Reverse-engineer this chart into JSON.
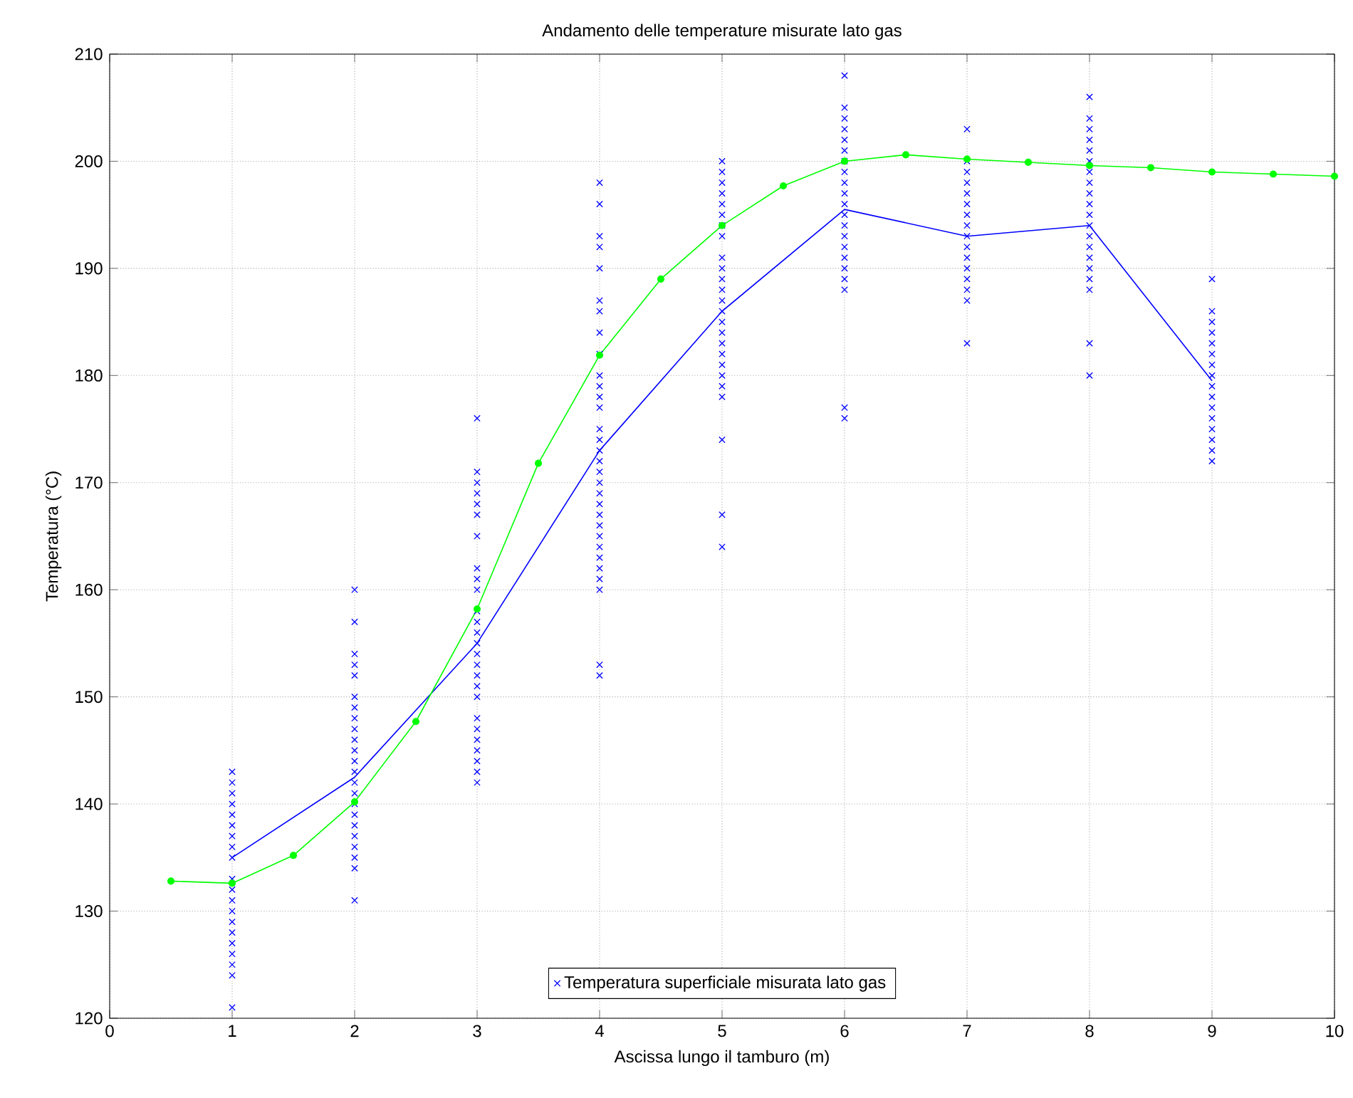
{
  "chart_data": {
    "type": "scatter",
    "title": "Andamento delle temperature misurate lato gas",
    "xlabel": "Ascissa lungo il tamburo (m)",
    "ylabel": "Temperatura (°C)",
    "xlim": [
      0,
      10
    ],
    "ylim": [
      120,
      210
    ],
    "xticks": [
      0,
      1,
      2,
      3,
      4,
      5,
      6,
      7,
      8,
      9,
      10
    ],
    "yticks": [
      120,
      130,
      140,
      150,
      160,
      170,
      180,
      190,
      200,
      210
    ],
    "grid": true,
    "legend": "bottom",
    "series": [
      {
        "name": "Temperatura superficiale misurata lato gas",
        "marker": "cross",
        "color": "#0000ff",
        "x": [
          1,
          1,
          1,
          1,
          1,
          1,
          1,
          1,
          1,
          1,
          1,
          1,
          1,
          1,
          1,
          1,
          1,
          1,
          1,
          1,
          2,
          2,
          2,
          2,
          2,
          2,
          2,
          2,
          2,
          2,
          2,
          2,
          2,
          2,
          2,
          2,
          2,
          2,
          2,
          2,
          2,
          2,
          2,
          3,
          3,
          3,
          3,
          3,
          3,
          3,
          3,
          3,
          3,
          3,
          3,
          3,
          3,
          3,
          3,
          3,
          3,
          3,
          3,
          3,
          3,
          3,
          3,
          3,
          3,
          4,
          4,
          4,
          4,
          4,
          4,
          4,
          4,
          4,
          4,
          4,
          4,
          4,
          4,
          4,
          4,
          4,
          4,
          4,
          4,
          4,
          4,
          4,
          4,
          4,
          4,
          4,
          4,
          4,
          4,
          4,
          5,
          5,
          5,
          5,
          5,
          5,
          5,
          5,
          5,
          5,
          5,
          5,
          5,
          5,
          5,
          5,
          5,
          5,
          5,
          5,
          5,
          5,
          5,
          5,
          5,
          6,
          6,
          6,
          6,
          6,
          6,
          6,
          6,
          6,
          6,
          6,
          6,
          6,
          6,
          6,
          6,
          6,
          6,
          6,
          6,
          6,
          7,
          7,
          7,
          7,
          7,
          7,
          7,
          7,
          7,
          7,
          7,
          7,
          7,
          7,
          7,
          7,
          8,
          8,
          8,
          8,
          8,
          8,
          8,
          8,
          8,
          8,
          8,
          8,
          8,
          8,
          8,
          8,
          8,
          8,
          8,
          8,
          9,
          9,
          9,
          9,
          9,
          9,
          9,
          9,
          9,
          9,
          9,
          9,
          9,
          9,
          9,
          9
        ],
        "values": [
          143,
          142,
          141,
          140,
          139,
          138,
          137,
          136,
          135,
          133,
          132,
          131,
          130,
          129,
          128,
          127,
          126,
          125,
          124,
          121,
          160,
          157,
          154,
          153,
          152,
          150,
          149,
          148,
          147,
          146,
          145,
          144,
          143,
          142,
          141,
          140,
          139,
          138,
          137,
          136,
          135,
          134,
          131,
          176,
          171,
          170,
          169,
          168,
          167,
          165,
          162,
          161,
          160,
          158,
          157,
          156,
          155,
          154,
          153,
          152,
          151,
          150,
          148,
          147,
          146,
          145,
          144,
          143,
          142,
          198,
          196,
          193,
          192,
          190,
          187,
          186,
          184,
          182,
          180,
          179,
          178,
          177,
          175,
          174,
          173,
          172,
          171,
          170,
          169,
          168,
          167,
          166,
          165,
          164,
          163,
          162,
          161,
          160,
          153,
          152,
          200,
          199,
          198,
          197,
          196,
          195,
          194,
          193,
          191,
          190,
          189,
          188,
          187,
          186,
          185,
          184,
          183,
          182,
          181,
          180,
          179,
          178,
          174,
          167,
          164,
          208,
          205,
          204,
          203,
          202,
          201,
          200,
          199,
          198,
          197,
          196,
          195,
          194,
          193,
          192,
          191,
          190,
          189,
          188,
          177,
          176,
          203,
          200,
          199,
          198,
          197,
          196,
          195,
          194,
          193,
          192,
          191,
          190,
          189,
          188,
          187,
          183,
          206,
          204,
          203,
          202,
          201,
          200,
          199,
          198,
          197,
          196,
          195,
          194,
          193,
          192,
          191,
          190,
          189,
          188,
          183,
          180,
          189,
          186,
          185,
          184,
          183,
          182,
          181,
          180,
          179,
          178,
          177,
          176,
          175,
          174,
          173,
          172
        ]
      },
      {
        "type": "line",
        "marker": "none",
        "color": "#0000ff",
        "x": [
          1,
          2,
          3,
          4,
          5,
          6,
          7,
          8,
          9
        ],
        "values": [
          135,
          142.5,
          155,
          173,
          186,
          195.5,
          193,
          194,
          179.5
        ]
      },
      {
        "type": "line",
        "marker": "circle",
        "color": "#00ff00",
        "x": [
          0.5,
          1,
          1.5,
          2,
          2.5,
          3,
          3.5,
          4,
          4.5,
          5,
          5.5,
          6,
          6.5,
          7,
          7.5,
          8,
          8.5,
          9,
          9.5,
          10
        ],
        "values": [
          132.8,
          132.6,
          135.2,
          140.2,
          147.7,
          158.2,
          171.8,
          181.9,
          189,
          194,
          197.7,
          200,
          200.6,
          200.2,
          199.9,
          199.6,
          199.4,
          199,
          198.8,
          198.6
        ]
      }
    ]
  }
}
